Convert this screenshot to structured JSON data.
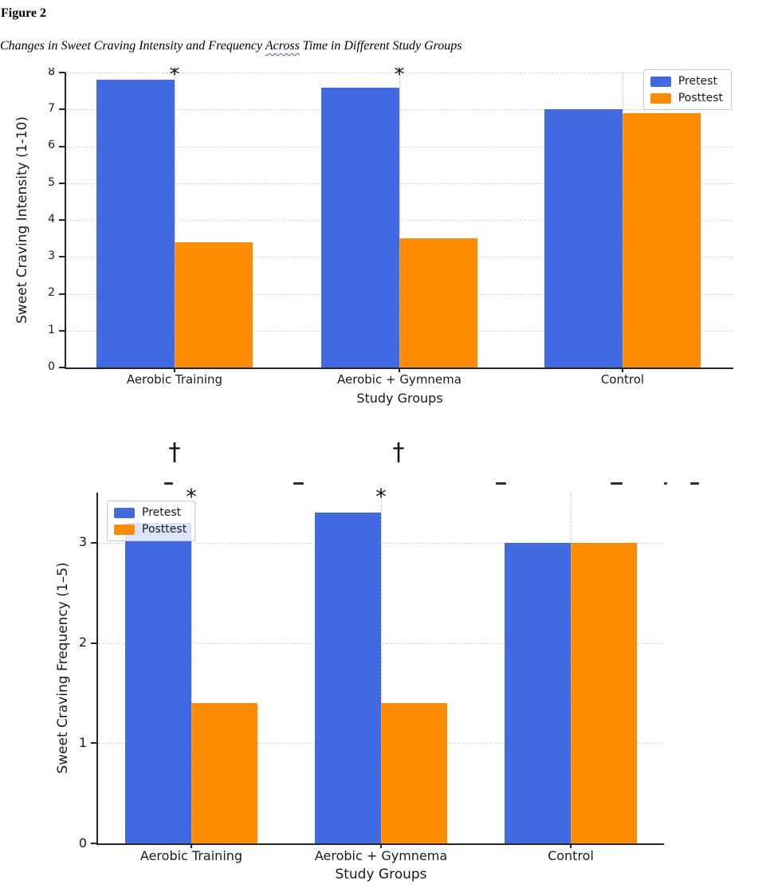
{
  "document": {
    "figure_label": "Figure 2",
    "caption_prefix": "Changes in Sweet Craving Intensity and Frequency ",
    "caption_misspelled_word": "Across",
    "caption_suffix": " Time in Different Study Groups",
    "caption_underline_color": "#3f5ae0"
  },
  "between_charts": {
    "daggers": [
      "†",
      "†"
    ]
  },
  "colors": {
    "pretest": "#4169E1",
    "posttest": "#FF8C00",
    "gridline": "#d8d8d8",
    "axis": "#262626"
  },
  "chart_data": [
    {
      "type": "bar",
      "title": "",
      "categories": [
        "Aerobic Training",
        "Aerobic + Gymnema",
        "Control"
      ],
      "series": [
        {
          "name": "Pretest",
          "color": "#4169E1",
          "values": [
            7.8,
            7.6,
            7.0
          ]
        },
        {
          "name": "Posttest",
          "color": "#FF8C00",
          "values": [
            3.4,
            3.5,
            6.9
          ]
        }
      ],
      "xlabel": "Study Groups",
      "ylabel": "Sweet Craving Intensity (1-10)",
      "ylim": [
        0,
        8
      ],
      "yticks": [
        0,
        1,
        2,
        3,
        4,
        5,
        6,
        7,
        8
      ],
      "grid": {
        "horizontal": "dashed",
        "vertical_at_group_centers": "dashed"
      },
      "legend_position": "upper right",
      "annotations": [
        {
          "category_index": 0,
          "text": "*"
        },
        {
          "category_index": 1,
          "text": "*"
        }
      ]
    },
    {
      "type": "bar",
      "title": "",
      "categories": [
        "Aerobic Training",
        "Aerobic + Gymnema",
        "Control"
      ],
      "series": [
        {
          "name": "Pretest",
          "color": "#4169E1",
          "values": [
            3.2,
            3.3,
            3.0
          ]
        },
        {
          "name": "Posttest",
          "color": "#FF8C00",
          "values": [
            1.4,
            1.4,
            3.0
          ]
        }
      ],
      "xlabel": "Study Groups",
      "ylabel": "Sweet Craving Frequency (1–5)",
      "ylim": [
        0,
        3.5
      ],
      "yticks": [
        0,
        1,
        2,
        3
      ],
      "grid": {
        "horizontal": "dashed",
        "vertical_at_group_centers": "dashed"
      },
      "legend_position": "upper left",
      "annotations": [
        {
          "category_index": 0,
          "text": "*"
        },
        {
          "category_index": 1,
          "text": "*"
        }
      ]
    }
  ]
}
